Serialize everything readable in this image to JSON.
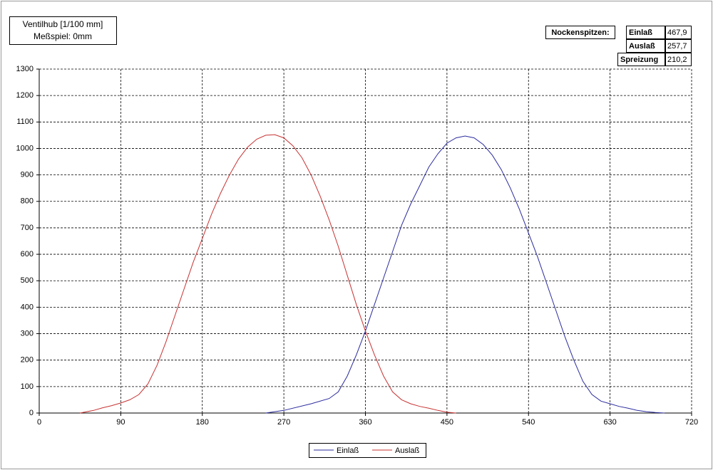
{
  "chart_data": {
    "type": "line",
    "title": [
      "Ventilhub [1/100 mm]",
      "Meßspiel: 0mm"
    ],
    "annotations": {
      "heading": "Nockenspitzen:",
      "rows": [
        [
          "Einlaß",
          "467,9"
        ],
        [
          "Auslaß",
          "257,7"
        ],
        [
          "Spreizung",
          "210,2"
        ]
      ]
    },
    "xlim": [
      0,
      720
    ],
    "xticks": [
      0,
      90,
      180,
      270,
      360,
      450,
      540,
      630,
      720
    ],
    "ylim": [
      0,
      1300
    ],
    "yticks": [
      0,
      100,
      200,
      300,
      400,
      500,
      600,
      700,
      800,
      900,
      1000,
      1100,
      1200,
      1300
    ],
    "grid": true,
    "series": [
      {
        "name": "Einlaß",
        "color": "#2b2b9e",
        "x": [
          250,
          270,
          300,
          320,
          330,
          340,
          350,
          360,
          370,
          380,
          390,
          400,
          410,
          420,
          430,
          440,
          450,
          460,
          470,
          480,
          490,
          500,
          510,
          520,
          530,
          540,
          550,
          560,
          570,
          580,
          590,
          600,
          610,
          620,
          630,
          640,
          650,
          660,
          670,
          680,
          690
        ],
        "values": [
          0,
          10,
          35,
          55,
          80,
          140,
          220,
          310,
          410,
          510,
          610,
          710,
          790,
          860,
          930,
          980,
          1020,
          1040,
          1047,
          1040,
          1015,
          975,
          920,
          850,
          770,
          680,
          590,
          490,
          390,
          290,
          200,
          120,
          70,
          45,
          35,
          25,
          18,
          10,
          5,
          2,
          0
        ]
      },
      {
        "name": "Auslaß",
        "color": "#c83232",
        "x": [
          45,
          60,
          70,
          80,
          90,
          100,
          110,
          120,
          130,
          140,
          150,
          160,
          170,
          180,
          190,
          200,
          210,
          220,
          230,
          240,
          250,
          260,
          270,
          280,
          290,
          300,
          310,
          320,
          330,
          340,
          350,
          360,
          370,
          380,
          390,
          400,
          410,
          420,
          430,
          440,
          450,
          460
        ],
        "values": [
          0,
          10,
          20,
          28,
          38,
          50,
          70,
          110,
          180,
          270,
          370,
          470,
          570,
          660,
          750,
          830,
          900,
          960,
          1005,
          1035,
          1050,
          1052,
          1040,
          1010,
          965,
          900,
          820,
          730,
          630,
          520,
          410,
          310,
          220,
          140,
          80,
          50,
          35,
          25,
          18,
          10,
          3,
          0
        ]
      }
    ]
  }
}
